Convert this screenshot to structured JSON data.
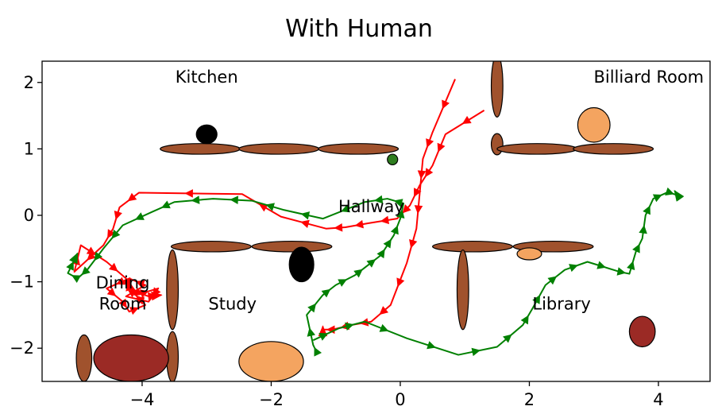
{
  "chart_data": {
    "type": "scatter",
    "title": "With Human",
    "xlabel": "",
    "ylabel": "",
    "xlim": [
      -5.55,
      4.8
    ],
    "ylim": [
      -2.5,
      2.32
    ],
    "grid": false,
    "x_ticks": [
      {
        "value": -4,
        "label": "−4"
      },
      {
        "value": -2,
        "label": "−2"
      },
      {
        "value": 0,
        "label": "0"
      },
      {
        "value": 2,
        "label": "2"
      },
      {
        "value": 4,
        "label": "4"
      }
    ],
    "y_ticks": [
      {
        "value": 2,
        "label": "2"
      },
      {
        "value": 1,
        "label": "1"
      },
      {
        "value": 0,
        "label": "0"
      },
      {
        "value": -1,
        "label": "−1"
      },
      {
        "value": -2,
        "label": "−2"
      }
    ],
    "room_labels": [
      {
        "text": "Kitchen",
        "x": -3.0,
        "y": 2.0
      },
      {
        "text": "Billiard Room",
        "x": 3.85,
        "y": 2.0
      },
      {
        "text": "Hallway",
        "x": -0.45,
        "y": 0.05
      },
      {
        "text": "Dining",
        "x": -4.3,
        "y": -1.1
      },
      {
        "text": "Room",
        "x": -4.3,
        "y": -1.42
      },
      {
        "text": "Study",
        "x": -2.6,
        "y": -1.42
      },
      {
        "text": "Library",
        "x": 2.5,
        "y": -1.42
      }
    ],
    "walls": [
      {
        "cx": -3.1,
        "cy": 1.0,
        "rx": 0.62,
        "ry": 0.08
      },
      {
        "cx": -1.88,
        "cy": 1.0,
        "rx": 0.62,
        "ry": 0.08
      },
      {
        "cx": -0.65,
        "cy": 1.0,
        "rx": 0.62,
        "ry": 0.08
      },
      {
        "cx": 1.5,
        "cy": 1.95,
        "rx": 0.09,
        "ry": 0.47
      },
      {
        "cx": 1.5,
        "cy": 1.07,
        "rx": 0.09,
        "ry": 0.16
      },
      {
        "cx": 2.12,
        "cy": 1.0,
        "rx": 0.62,
        "ry": 0.08
      },
      {
        "cx": 3.3,
        "cy": 1.0,
        "rx": 0.62,
        "ry": 0.08
      },
      {
        "cx": -2.93,
        "cy": -0.47,
        "rx": 0.62,
        "ry": 0.08
      },
      {
        "cx": -1.68,
        "cy": -0.47,
        "rx": 0.62,
        "ry": 0.08
      },
      {
        "cx": -3.53,
        "cy": -1.12,
        "rx": 0.09,
        "ry": 0.6
      },
      {
        "cx": -3.53,
        "cy": -2.13,
        "rx": 0.09,
        "ry": 0.38
      },
      {
        "cx": -4.9,
        "cy": -2.15,
        "rx": 0.12,
        "ry": 0.35
      },
      {
        "cx": 1.12,
        "cy": -0.47,
        "rx": 0.62,
        "ry": 0.08
      },
      {
        "cx": 2.37,
        "cy": -0.47,
        "rx": 0.62,
        "ry": 0.08
      },
      {
        "cx": 0.97,
        "cy": -1.12,
        "rx": 0.09,
        "ry": 0.6
      }
    ],
    "objects": [
      {
        "name": "black-ball-kitchen",
        "color": "#000000",
        "cx": -3.0,
        "cy": 1.22,
        "rx": 0.16,
        "ry": 0.14
      },
      {
        "name": "green-dot",
        "color": "#2e7d1f",
        "cx": -0.12,
        "cy": 0.84,
        "rx": 0.08,
        "ry": 0.08
      },
      {
        "name": "orange-ball-billiard",
        "color": "#f4a460",
        "cx": 3.0,
        "cy": 1.36,
        "rx": 0.25,
        "ry": 0.26
      },
      {
        "name": "black-ball-study",
        "color": "#000000",
        "cx": -1.53,
        "cy": -0.74,
        "rx": 0.19,
        "ry": 0.26
      },
      {
        "name": "small-orange-library",
        "color": "#f4a460",
        "cx": 2.0,
        "cy": -0.58,
        "rx": 0.19,
        "ry": 0.09
      },
      {
        "name": "dark-red-ball-library",
        "color": "#9b2a25",
        "cx": 3.75,
        "cy": -1.75,
        "rx": 0.2,
        "ry": 0.23
      },
      {
        "name": "dark-red-table-dining",
        "color": "#9b2a25",
        "cx": -4.17,
        "cy": -2.15,
        "rx": 0.58,
        "ry": 0.35
      },
      {
        "name": "orange-table-study",
        "color": "#f4a460",
        "cx": -2.0,
        "cy": -2.2,
        "rx": 0.5,
        "ry": 0.3
      }
    ],
    "series": [
      {
        "color": "#ff0000",
        "x": [
          1.3,
          0.7,
          0.5,
          0.3,
          0.15,
          -0.05,
          -0.5,
          -0.85,
          -1.15,
          -1.85,
          -2.45,
          -4.05,
          -4.35,
          -4.45,
          -4.6,
          -5.05,
          -4.95,
          -4.55,
          -4.25,
          -4.1,
          -3.75,
          -3.9,
          -4.25,
          -3.95,
          -4.2,
          -4.55,
          -4.3,
          -4.2,
          -3.95,
          -4.2,
          -4.25,
          -4.1,
          -3.9,
          -3.7
        ],
        "y": [
          1.58,
          1.22,
          0.75,
          0.45,
          0.15,
          -0.05,
          -0.12,
          -0.18,
          -0.2,
          -0.02,
          0.32,
          0.34,
          0.12,
          -0.2,
          -0.45,
          -0.85,
          -0.45,
          -0.7,
          -0.95,
          -1.2,
          -1.1,
          -1.3,
          -1.22,
          -1.05,
          -0.95,
          -1.1,
          -1.3,
          -1.45,
          -1.35,
          -1.1,
          -0.95,
          -1.15,
          -1.22,
          -1.2
        ]
      },
      {
        "color": "#ff0000",
        "x": [
          0.85,
          0.5,
          0.35,
          0.3,
          0.25,
          0.1,
          -0.15,
          -0.45,
          -0.75,
          -1.05,
          -1.2,
          -1.2
        ],
        "y": [
          2.05,
          1.25,
          0.85,
          0.32,
          -0.2,
          -0.72,
          -1.35,
          -1.6,
          -1.65,
          -1.72,
          -1.72,
          -1.67
        ]
      },
      {
        "color": "#008000",
        "x": [
          -1.3,
          -1.35,
          -1.45,
          -1.2,
          -1.0,
          -0.7,
          -0.5,
          -0.3,
          -0.2,
          -0.1,
          0.0,
          0.05,
          -0.2,
          -0.55,
          -1.2,
          -1.8,
          -2.3,
          -2.9,
          -3.5,
          -3.85,
          -4.3,
          -4.6,
          -4.85,
          -5.0,
          -5.15,
          -5.0
        ],
        "y": [
          -2.05,
          -1.95,
          -1.5,
          -1.2,
          -1.05,
          -0.9,
          -0.75,
          -0.6,
          -0.45,
          -0.3,
          -0.05,
          0.18,
          0.25,
          0.2,
          -0.05,
          0.08,
          0.22,
          0.25,
          0.2,
          0.05,
          -0.15,
          -0.5,
          -0.82,
          -0.95,
          -0.87,
          -0.57
        ]
      },
      {
        "color": "#008000",
        "x": [
          -1.35,
          -0.95,
          -0.55,
          0.1,
          0.9,
          1.5,
          1.9,
          2.05,
          2.25,
          2.55,
          2.9,
          3.4,
          3.55,
          3.65,
          3.75,
          3.8,
          3.92,
          4.15,
          4.3,
          4.25
        ],
        "y": [
          -1.88,
          -1.7,
          -1.6,
          -1.85,
          -2.1,
          -1.98,
          -1.65,
          -1.4,
          -1.05,
          -0.82,
          -0.7,
          -0.85,
          -0.88,
          -0.55,
          -0.35,
          0.0,
          0.25,
          0.35,
          0.3,
          0.37
        ]
      }
    ]
  }
}
